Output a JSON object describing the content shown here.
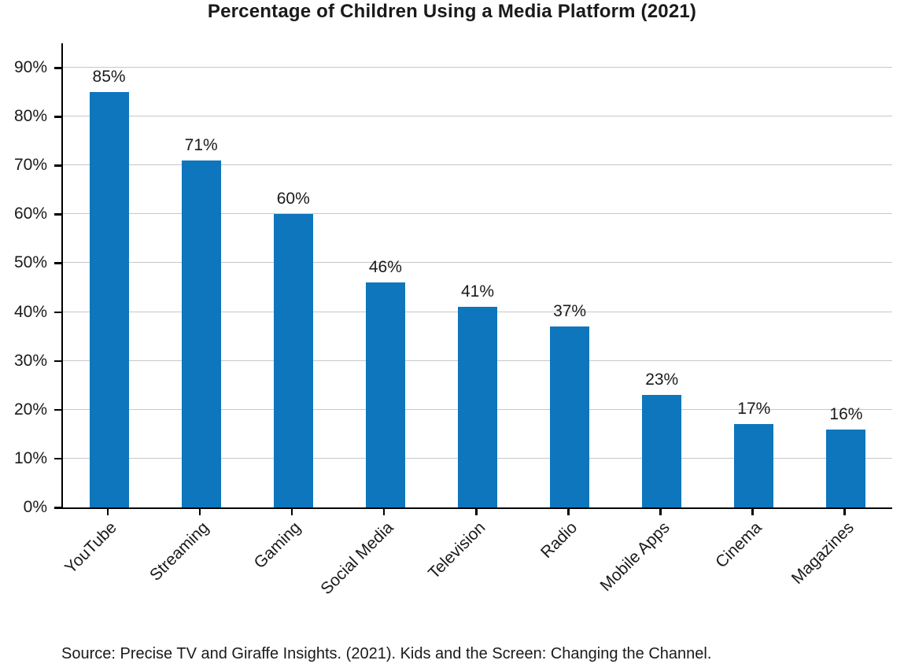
{
  "chart_data": {
    "type": "bar",
    "title": "Percentage of Children Using a Media Platform (2021)",
    "categories": [
      "YouTube",
      "Streaming",
      "Gaming",
      "Social Media",
      "Television",
      "Radio",
      "Mobile Apps",
      "Cinema",
      "Magazines"
    ],
    "values": [
      85,
      71,
      60,
      46,
      41,
      37,
      23,
      17,
      16
    ],
    "value_labels": [
      "85%",
      "71%",
      "60%",
      "46%",
      "41%",
      "37%",
      "23%",
      "17%",
      "16%"
    ],
    "xlabel": "",
    "ylabel": "",
    "ylim": [
      0,
      95
    ],
    "yticks": [
      0,
      10,
      20,
      30,
      40,
      50,
      60,
      70,
      80,
      90
    ],
    "ytick_labels": [
      "0%",
      "10%",
      "20%",
      "30%",
      "40%",
      "50%",
      "60%",
      "70%",
      "80%",
      "90%"
    ],
    "grid": true,
    "legend": "none",
    "bar_color": "#0d76bc",
    "source_note": "Source: Precise TV and Giraffe Insights. (2021). Kids and the Screen: Changing the Channel."
  },
  "colors": {
    "bar": "#0d76bc",
    "axis": "#000000",
    "gridline": "#c7c7c7",
    "text": "#1a1a1a",
    "background": "#ffffff"
  }
}
